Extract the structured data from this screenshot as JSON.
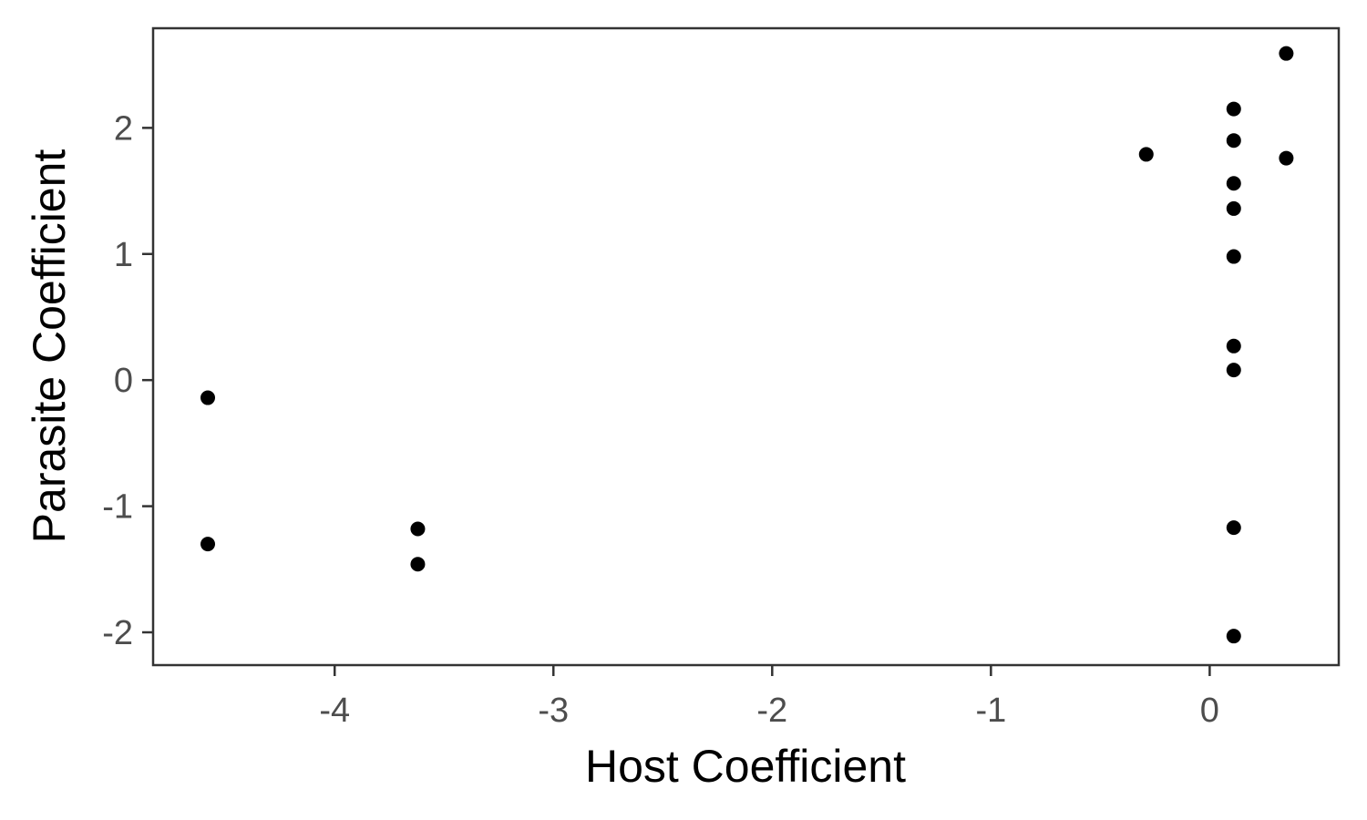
{
  "chart_data": {
    "type": "scatter",
    "title": "",
    "xlabel": "Host Coefficient",
    "ylabel": "Parasite Coefficient",
    "xlim": [
      -4.83,
      0.59
    ],
    "ylim": [
      -2.26,
      2.79
    ],
    "x_ticks": [
      -4,
      -3,
      -2,
      -1,
      0
    ],
    "y_ticks": [
      -2,
      -1,
      0,
      1,
      2
    ],
    "x_tick_labels": [
      "-4",
      "-3",
      "-2",
      "-1",
      "0"
    ],
    "y_tick_labels": [
      "-2",
      "-1",
      "0",
      "1",
      "2"
    ],
    "grid": false,
    "legend": "none",
    "point_color": "#000000",
    "frame_color": "#333333",
    "points": [
      {
        "x": -4.58,
        "y": -0.14
      },
      {
        "x": -4.58,
        "y": -1.3
      },
      {
        "x": -3.62,
        "y": -1.18
      },
      {
        "x": -3.62,
        "y": -1.46
      },
      {
        "x": -0.29,
        "y": 1.79
      },
      {
        "x": 0.11,
        "y": 2.15
      },
      {
        "x": 0.11,
        "y": 1.9
      },
      {
        "x": 0.11,
        "y": 1.56
      },
      {
        "x": 0.11,
        "y": 1.36
      },
      {
        "x": 0.11,
        "y": 0.98
      },
      {
        "x": 0.11,
        "y": 0.27
      },
      {
        "x": 0.11,
        "y": 0.08
      },
      {
        "x": 0.11,
        "y": -1.17
      },
      {
        "x": 0.11,
        "y": -2.03
      },
      {
        "x": 0.35,
        "y": 2.59
      },
      {
        "x": 0.35,
        "y": 1.76
      }
    ]
  }
}
